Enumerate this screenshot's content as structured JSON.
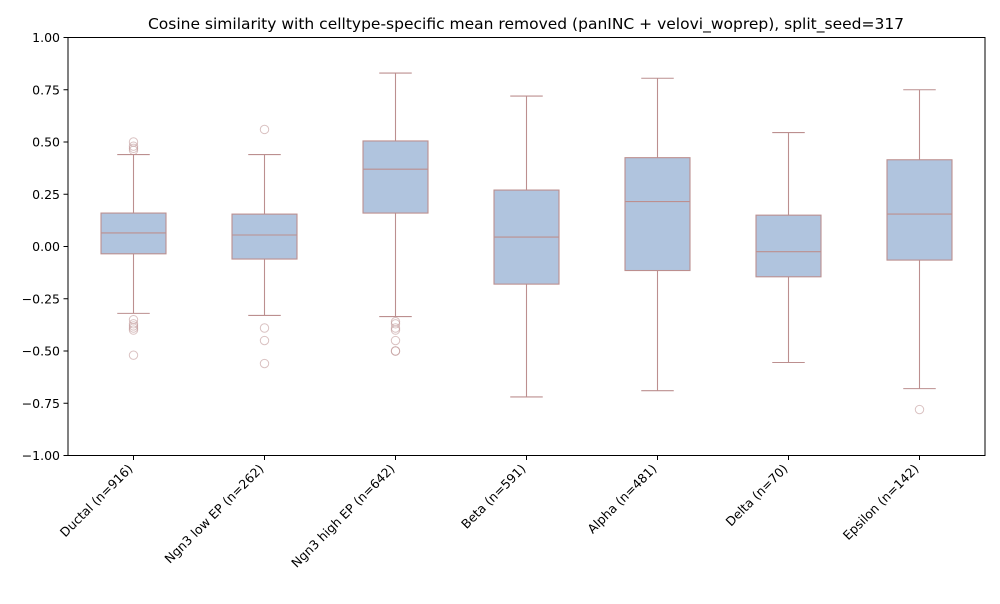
{
  "chart_data": {
    "type": "box",
    "title": "Cosine similarity with celltype-specific mean removed (panINC + velovi_woprep), split_seed=317",
    "xlabel": "",
    "ylabel": "",
    "ylim": [
      -1.0,
      1.0
    ],
    "yticks": [
      "−1.00",
      "−0.75",
      "−0.50",
      "−0.25",
      "0.00",
      "0.25",
      "0.50",
      "0.75",
      "1.00"
    ],
    "ytick_values": [
      -1.0,
      -0.75,
      -0.5,
      -0.25,
      0.0,
      0.25,
      0.5,
      0.75,
      1.0
    ],
    "grid": false,
    "colors": {
      "box_fill": "#b0c4de",
      "box_edge": "#bc8f8f",
      "flier": "#bc8f8f"
    },
    "categories": [
      "Ductal (n=916)",
      "Ngn3 low EP (n=262)",
      "Ngn3 high EP (n=642)",
      "Beta (n=591)",
      "Alpha (n=481)",
      "Delta (n=70)",
      "Epsilon (n=142)"
    ],
    "boxes": [
      {
        "whisker_low": -0.32,
        "q1": -0.035,
        "median": 0.065,
        "q3": 0.16,
        "whisker_high": 0.44,
        "fliers": [
          0.5,
          0.48,
          0.47,
          0.46,
          -0.35,
          -0.37,
          -0.38,
          -0.39,
          -0.4,
          -0.52
        ]
      },
      {
        "whisker_low": -0.33,
        "q1": -0.06,
        "median": 0.055,
        "q3": 0.155,
        "whisker_high": 0.44,
        "fliers": [
          0.56,
          -0.39,
          -0.45,
          -0.56
        ]
      },
      {
        "whisker_low": -0.335,
        "q1": 0.16,
        "median": 0.37,
        "q3": 0.505,
        "whisker_high": 0.83,
        "fliers": [
          -0.36,
          -0.37,
          -0.39,
          -0.4,
          -0.45,
          -0.5,
          -0.5
        ]
      },
      {
        "whisker_low": -0.72,
        "q1": -0.18,
        "median": 0.045,
        "q3": 0.27,
        "whisker_high": 0.72,
        "fliers": []
      },
      {
        "whisker_low": -0.69,
        "q1": -0.115,
        "median": 0.215,
        "q3": 0.425,
        "whisker_high": 0.805,
        "fliers": []
      },
      {
        "whisker_low": -0.555,
        "q1": -0.145,
        "median": -0.025,
        "q3": 0.15,
        "whisker_high": 0.545,
        "fliers": []
      },
      {
        "whisker_low": -0.68,
        "q1": -0.065,
        "median": 0.155,
        "q3": 0.415,
        "whisker_high": 0.75,
        "fliers": [
          -0.78
        ]
      }
    ]
  }
}
